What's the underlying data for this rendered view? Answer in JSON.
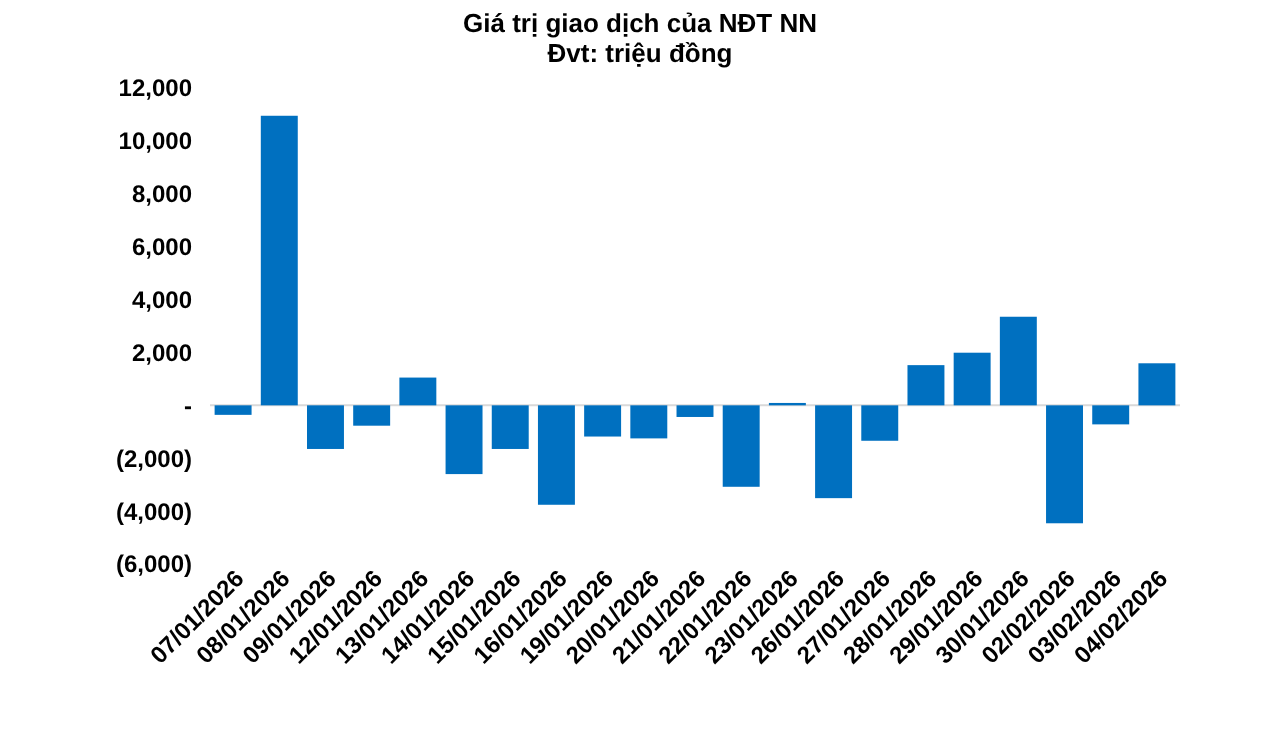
{
  "chart_data": {
    "type": "bar",
    "title": "Giá trị giao dịch của NĐT NN",
    "subtitle": "Đvt: triệu đồng",
    "categories": [
      "07/01/2026",
      "08/01/2026",
      "09/01/2026",
      "12/01/2026",
      "13/01/2026",
      "14/01/2026",
      "15/01/2026",
      "16/01/2026",
      "19/01/2026",
      "20/01/2026",
      "21/01/2026",
      "22/01/2026",
      "23/01/2026",
      "26/01/2026",
      "27/01/2026",
      "28/01/2026",
      "29/01/2026",
      "30/01/2026",
      "02/02/2026",
      "03/02/2026",
      "04/02/2026"
    ],
    "values": [
      -360,
      10950,
      -1650,
      -770,
      1050,
      -2600,
      -1650,
      -3760,
      -1180,
      -1250,
      -440,
      -3080,
      90,
      -3510,
      -1340,
      1520,
      1990,
      3350,
      -4460,
      -720,
      1590
    ],
    "color": "#0070c0",
    "ylim": [
      -6000,
      12000
    ],
    "yticks": [
      {
        "value": -6000,
        "label": "(6,000)"
      },
      {
        "value": -4000,
        "label": "(4,000)"
      },
      {
        "value": -2000,
        "label": "(2,000)"
      },
      {
        "value": 0,
        "label": "-"
      },
      {
        "value": 2000,
        "label": "2,000"
      },
      {
        "value": 4000,
        "label": "4,000"
      },
      {
        "value": 6000,
        "label": "6,000"
      },
      {
        "value": 8000,
        "label": "8,000"
      },
      {
        "value": 10000,
        "label": "10,000"
      },
      {
        "value": 12000,
        "label": "12,000"
      }
    ]
  }
}
